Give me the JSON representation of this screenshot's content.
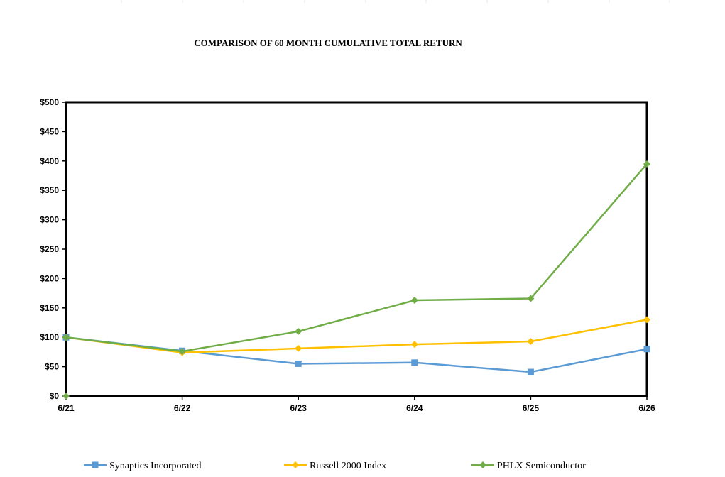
{
  "chart_data": {
    "type": "line",
    "title": "COMPARISON OF 60 MONTH CUMULATIVE TOTAL RETURN",
    "xlabel": "",
    "ylabel": "",
    "categories": [
      "6/21",
      "6/22",
      "6/23",
      "6/24",
      "6/25",
      "6/26"
    ],
    "ylim": [
      0,
      500
    ],
    "y_ticks": [
      "$0",
      "$50",
      "$100",
      "$150",
      "$200",
      "$250",
      "$300",
      "$350",
      "$400",
      "$450",
      "$500"
    ],
    "grid": false,
    "legend_position": "bottom",
    "series": [
      {
        "name": "Synaptics Incorporated",
        "values": [
          100,
          77,
          55,
          57,
          41,
          80
        ],
        "color": "#5b9bd5",
        "marker": "square"
      },
      {
        "name": "Russell 2000 Index",
        "values": [
          100,
          74,
          81,
          88,
          93,
          130
        ],
        "color": "#ffc000",
        "marker": "diamond"
      },
      {
        "name": "PHLX Semiconductor",
        "values": [
          100,
          76,
          110,
          163,
          166,
          395
        ],
        "color": "#70ad47",
        "marker": "diamond"
      }
    ]
  }
}
